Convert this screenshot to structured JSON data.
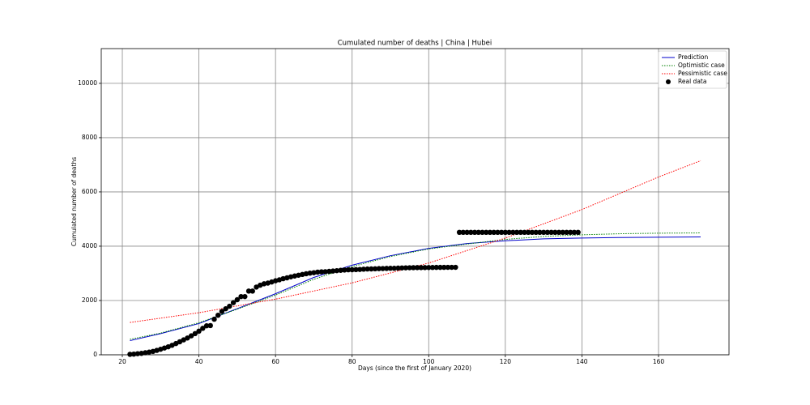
{
  "chart_data": {
    "type": "line",
    "title": "Cumulated number of deaths | China | Hubei",
    "x_label": "Days (since the first of January 2020)",
    "y_label": "Cumulated number of deaths",
    "xlim": [
      14.5,
      178.4
    ],
    "ylim": [
      0,
      11280
    ],
    "xticks": [
      20,
      40,
      60,
      80,
      100,
      120,
      140,
      160
    ],
    "yticks": [
      0,
      2000,
      4000,
      6000,
      8000,
      10000
    ],
    "grid": true,
    "legend": "upper right",
    "series": [
      {
        "name": "Prediction",
        "color": "#0000cc",
        "style": "solid",
        "x": [
          22,
          30,
          40,
          50,
          60,
          70,
          80,
          90,
          100,
          110,
          120,
          130,
          140,
          150,
          160,
          171
        ],
        "values": [
          520,
          780,
          1150,
          1700,
          2250,
          2850,
          3300,
          3650,
          3920,
          4100,
          4200,
          4270,
          4300,
          4320,
          4330,
          4340
        ]
      },
      {
        "name": "Optimistic case",
        "color": "#008000",
        "style": "dotted",
        "x": [
          22,
          30,
          40,
          50,
          60,
          70,
          80,
          90,
          100,
          110,
          120,
          130,
          140,
          150,
          160,
          171
        ],
        "values": [
          570,
          800,
          1180,
          1680,
          2200,
          2780,
          3250,
          3620,
          3900,
          4080,
          4250,
          4360,
          4420,
          4460,
          4480,
          4490
        ]
      },
      {
        "name": "Pessimistic case",
        "color": "#ff0000",
        "style": "dotted",
        "x": [
          22,
          40,
          60,
          80,
          100,
          120,
          140,
          160,
          171
        ],
        "values": [
          1190,
          1550,
          2050,
          2650,
          3380,
          4300,
          5350,
          6550,
          7150
        ]
      },
      {
        "name": "Real data",
        "color": "#000000",
        "style": "markers",
        "x": [
          22,
          23,
          24,
          25,
          26,
          27,
          28,
          29,
          30,
          31,
          32,
          33,
          34,
          35,
          36,
          37,
          38,
          39,
          40,
          41,
          42,
          43,
          44,
          45,
          46,
          47,
          48,
          49,
          50,
          51,
          52,
          53,
          54,
          55,
          56,
          57,
          58,
          59,
          60,
          61,
          62,
          63,
          64,
          65,
          66,
          67,
          68,
          69,
          70,
          71,
          72,
          73,
          74,
          75,
          76,
          77,
          78,
          79,
          80,
          81,
          82,
          83,
          84,
          85,
          86,
          87,
          88,
          89,
          90,
          91,
          92,
          93,
          94,
          95,
          96,
          97,
          98,
          99,
          100,
          101,
          102,
          103,
          104,
          105,
          106,
          107,
          108,
          109,
          110,
          111,
          112,
          113,
          114,
          115,
          116,
          117,
          118,
          119,
          120,
          121,
          122,
          123,
          124,
          125,
          126,
          127,
          128,
          129,
          130,
          131,
          132,
          133,
          134,
          135,
          136,
          137,
          138,
          139
        ],
        "values": [
          17,
          24,
          40,
          52,
          76,
          100,
          125,
          162,
          204,
          249,
          294,
          350,
          414,
          479,
          549,
          618,
          699,
          780,
          871,
          974,
          1068,
          1076,
          1310,
          1457,
          1596,
          1696,
          1789,
          1921,
          2029,
          2144,
          2144,
          2346,
          2346,
          2495,
          2563,
          2615,
          2641,
          2682,
          2727,
          2761,
          2803,
          2835,
          2871,
          2902,
          2931,
          2959,
          2986,
          3008,
          3024,
          3046,
          3056,
          3062,
          3075,
          3085,
          3099,
          3111,
          3122,
          3130,
          3133,
          3139,
          3144,
          3153,
          3160,
          3163,
          3169,
          3174,
          3177,
          3182,
          3186,
          3187,
          3193,
          3199,
          3203,
          3207,
          3210,
          3212,
          3212,
          3213,
          3215,
          3216,
          3219,
          3219,
          3221,
          3222,
          3222,
          3222,
          4512,
          4512,
          4512,
          4512,
          4512,
          4512,
          4512,
          4512,
          4512,
          4512,
          4512,
          4512,
          4512,
          4512,
          4512,
          4512,
          4512,
          4512,
          4512,
          4512,
          4512,
          4512,
          4512,
          4512,
          4512,
          4512,
          4512,
          4512,
          4512,
          4512,
          4512,
          4512
        ]
      }
    ]
  }
}
